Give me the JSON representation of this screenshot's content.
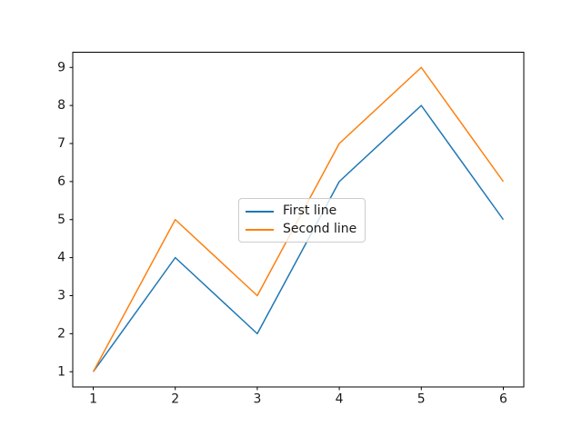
{
  "figure": {
    "background": "#ffffff",
    "spine_color": "#000000",
    "tick_color": "#000000",
    "tick_label_color": "#1a1a1a"
  },
  "chart_data": {
    "type": "line",
    "title": "",
    "xlabel": "",
    "ylabel": "",
    "x": [
      1,
      2,
      3,
      4,
      5,
      6
    ],
    "series": [
      {
        "name": "First line",
        "color": "#1f77b4",
        "values": [
          1,
          4,
          2,
          6,
          8,
          5
        ]
      },
      {
        "name": "Second line",
        "color": "#ff7f0e",
        "values": [
          1,
          5,
          3,
          7,
          9,
          6
        ]
      }
    ],
    "xticks": [
      1,
      2,
      3,
      4,
      5,
      6
    ],
    "yticks": [
      1,
      2,
      3,
      4,
      5,
      6,
      7,
      8,
      9
    ],
    "xlim": [
      0.75,
      6.25
    ],
    "ylim": [
      0.6,
      9.4
    ],
    "grid": false,
    "legend": {
      "position": "center",
      "entries": [
        "First line",
        "Second line"
      ]
    }
  }
}
